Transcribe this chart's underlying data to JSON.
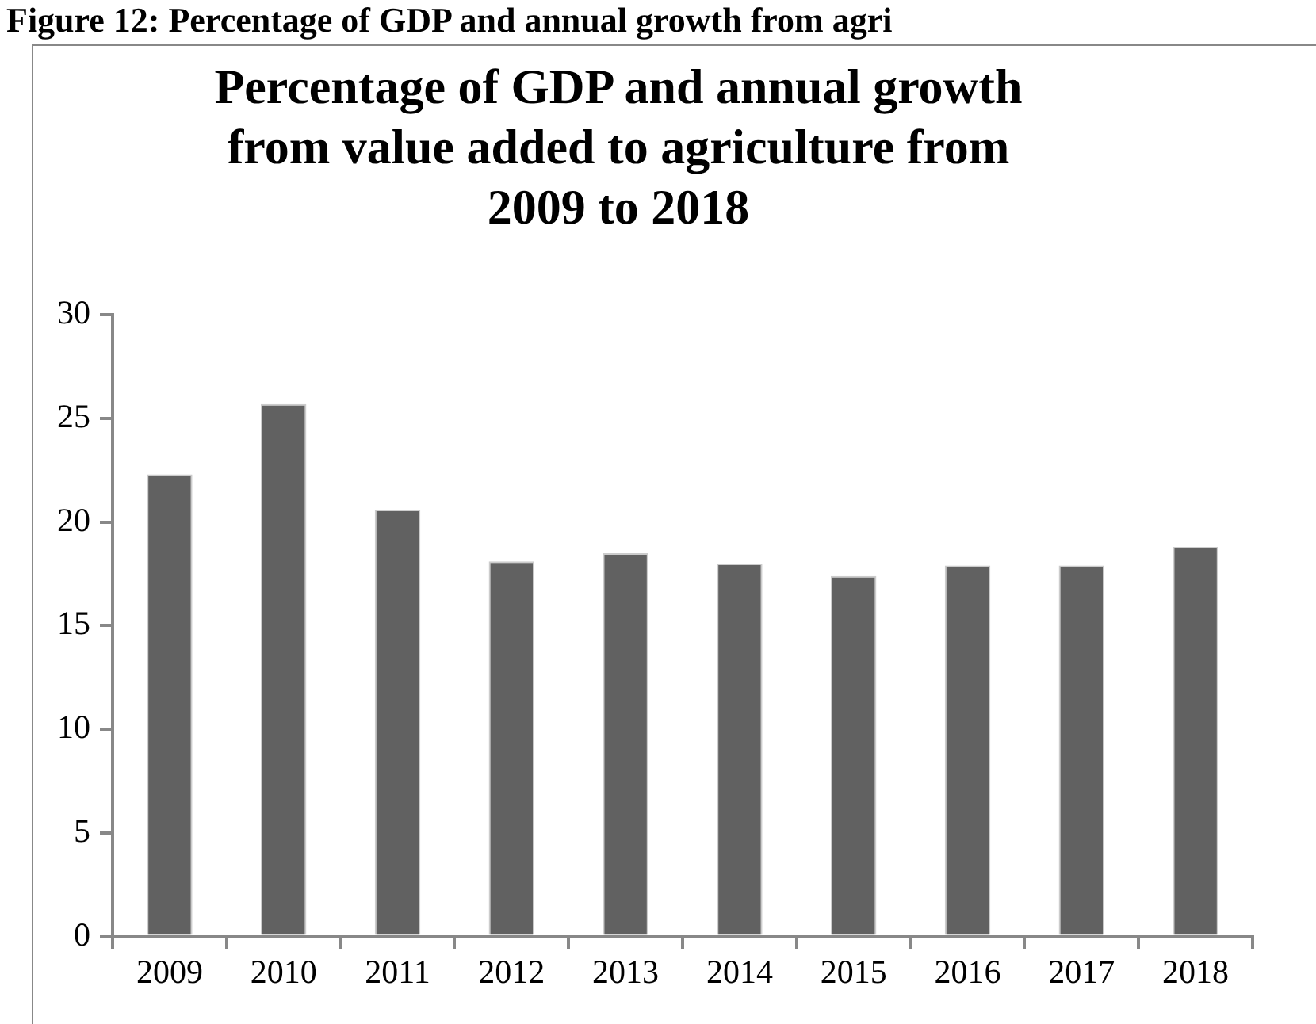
{
  "chart_data": {
    "type": "bar",
    "title": "Percentage of GDP and annual growth from value added to agriculture from 2009 to 2018",
    "annotations": [
      "Figure 12: Percentage of GDP and annual growth from agri"
    ],
    "categories": [
      "2009",
      "2010",
      "2011",
      "2012",
      "2013",
      "2014",
      "2015",
      "2016",
      "2017",
      "2018"
    ],
    "values": [
      22.3,
      25.7,
      20.6,
      18.1,
      18.5,
      18.0,
      17.4,
      17.9,
      17.9,
      18.8
    ],
    "color": "#616161",
    "ylim": [
      0,
      30
    ],
    "yticks": [
      0,
      5,
      10,
      15,
      20,
      25,
      30
    ],
    "grid": false,
    "legend": false
  }
}
